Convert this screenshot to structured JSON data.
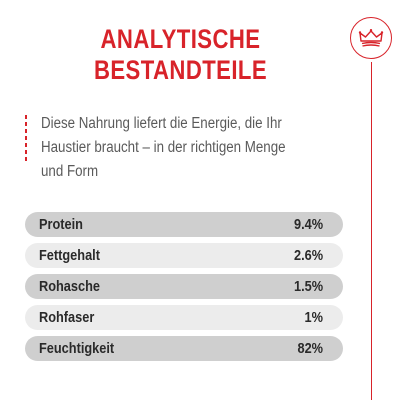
{
  "title": {
    "line1": "ANALYTISCHE",
    "line2": "BESTANDTEILE"
  },
  "intro": {
    "line1": "Diese Nahrung liefert die Energie, die Ihr",
    "line2": "Haustier braucht – in der richtigen Menge",
    "line3": "und Form"
  },
  "badge": {
    "icon": "crown-icon"
  },
  "colors": {
    "accent": "#d8232a",
    "row_dark": "#cfcfcf",
    "row_light": "#ececec",
    "text": "#2a2a2a",
    "intro_text": "#5a5a5a"
  },
  "rows": [
    {
      "label": "Protein",
      "value": "9.4%"
    },
    {
      "label": "Fettgehalt",
      "value": "2.6%"
    },
    {
      "label": "Rohasche",
      "value": "1.5%"
    },
    {
      "label": "Rohfaser",
      "value": "1%"
    },
    {
      "label": "Feuchtigkeit",
      "value": "82%"
    }
  ]
}
